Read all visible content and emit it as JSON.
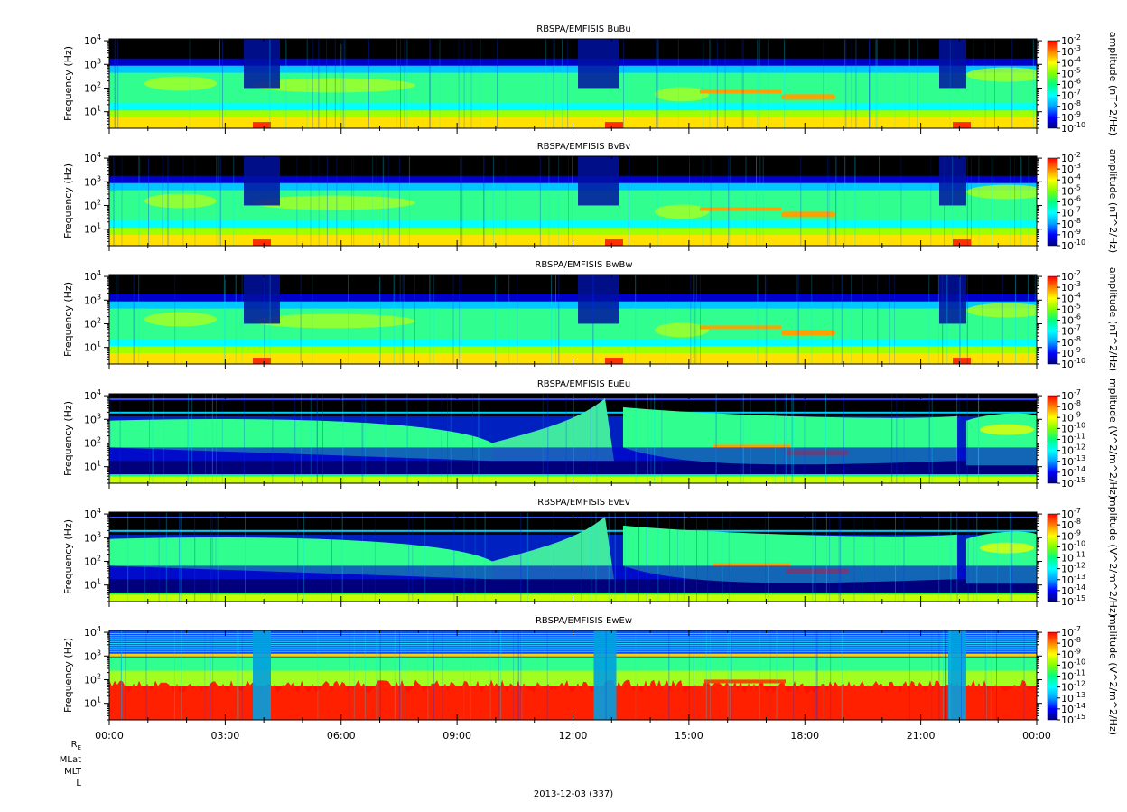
{
  "chart_data": {
    "type": "heatmap",
    "date_label": "2013-12-03 (337)",
    "x_ticks": [
      "00:00",
      "03:00",
      "06:00",
      "09:00",
      "12:00",
      "15:00",
      "18:00",
      "21:00",
      "00:00"
    ],
    "ephemeris_labels": [
      "R_E",
      "MLat",
      "MLT",
      "L"
    ],
    "colorscale": [
      "#000080",
      "#0000ff",
      "#00a0ff",
      "#00ffff",
      "#00ff80",
      "#80ff00",
      "#ffff00",
      "#ff8000",
      "#ff0000"
    ],
    "panels": [
      {
        "title": "RBSPA/EMFISIS  BuBu",
        "ylabel": "Frequency (Hz)",
        "yticks": [
          "10^1",
          "10^2",
          "10^3",
          "10^4"
        ],
        "cb_label": "amplitude (nT^2/Hz)",
        "cb_ticks": [
          "10^-2",
          "10^-3",
          "10^-4",
          "10^-5",
          "10^-6",
          "10^-7",
          "10^-8",
          "10^-9",
          "10^-10"
        ],
        "kind": "B"
      },
      {
        "title": "RBSPA/EMFISIS  BvBv",
        "ylabel": "Frequency (Hz)",
        "yticks": [
          "10^1",
          "10^2",
          "10^3",
          "10^4"
        ],
        "cb_label": "amplitude (nT^2/Hz)",
        "cb_ticks": [
          "10^-2",
          "10^-3",
          "10^-4",
          "10^-5",
          "10^-6",
          "10^-7",
          "10^-8",
          "10^-9",
          "10^-10"
        ],
        "kind": "B"
      },
      {
        "title": "RBSPA/EMFISIS  BwBw",
        "ylabel": "Frequency (Hz)",
        "yticks": [
          "10^1",
          "10^2",
          "10^3",
          "10^4"
        ],
        "cb_label": "amplitude (nT^2/Hz)",
        "cb_ticks": [
          "10^-2",
          "10^-3",
          "10^-4",
          "10^-5",
          "10^-6",
          "10^-7",
          "10^-8",
          "10^-9",
          "10^-10"
        ],
        "kind": "B"
      },
      {
        "title": "RBSPA/EMFISIS  EuEu",
        "ylabel": "Frequency (Hz)",
        "yticks": [
          "10^1",
          "10^2",
          "10^3",
          "10^4"
        ],
        "cb_label": "mplitude (V^2/m^2/Hz)",
        "cb_ticks": [
          "10^-7",
          "10^-8",
          "10^-9",
          "10^-10",
          "10^-11",
          "10^-12",
          "10^-13",
          "10^-14",
          "10^-15"
        ],
        "kind": "E"
      },
      {
        "title": "RBSPA/EMFISIS  EvEv",
        "ylabel": "Frequency (Hz)",
        "yticks": [
          "10^1",
          "10^2",
          "10^3",
          "10^4"
        ],
        "cb_label": "mplitude (V^2/m^2/Hz)",
        "cb_ticks": [
          "10^-7",
          "10^-8",
          "10^-9",
          "10^-10",
          "10^-11",
          "10^-12",
          "10^-13",
          "10^-14",
          "10^-15"
        ],
        "kind": "E"
      },
      {
        "title": "RBSPA/EMFISIS  EwEw",
        "ylabel": "Frequency (Hz)",
        "yticks": [
          "10^1",
          "10^2",
          "10^3",
          "10^4"
        ],
        "cb_label": "mplitude (V^2/m^2/Hz)",
        "cb_ticks": [
          "10^-7",
          "10^-8",
          "10^-9",
          "10^-10",
          "10^-11",
          "10^-12",
          "10^-13",
          "10^-14",
          "10^-15"
        ],
        "kind": "W"
      }
    ]
  }
}
